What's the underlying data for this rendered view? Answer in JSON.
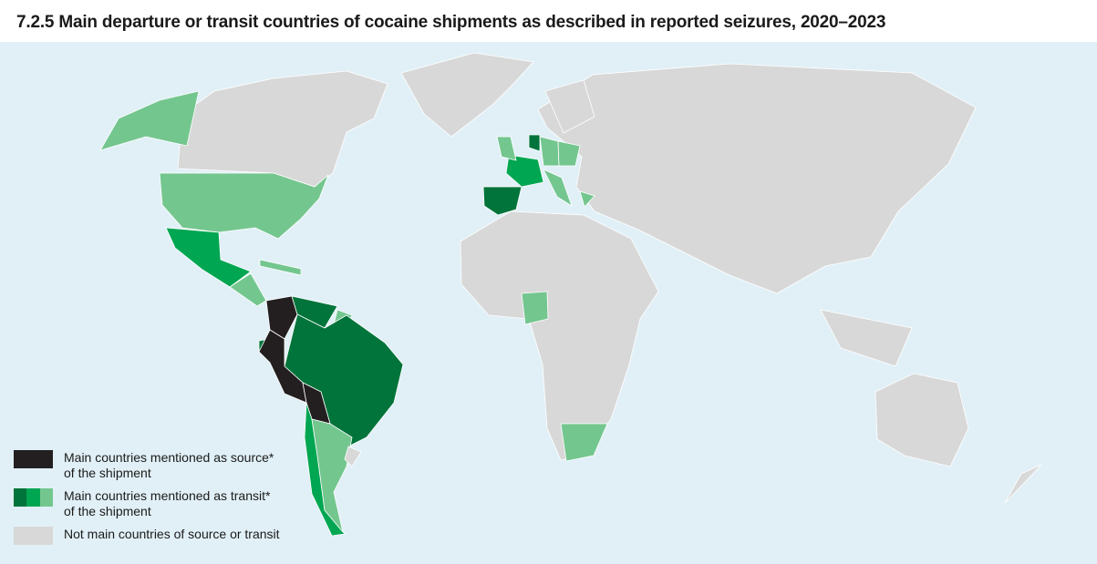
{
  "title": "7.2.5 Main departure or transit countries of cocaine shipments as described in reported seizures, 2020–2023",
  "colors": {
    "ocean": "#e1f0f7",
    "land": "#d8d8d8",
    "border": "#ffffff",
    "source": "#231f20",
    "transit_dark": "#00743a",
    "transit_mid": "#00a651",
    "transit_light": "#74c68f"
  },
  "legend": {
    "items": [
      {
        "label_line1": "Main countries mentioned as source*",
        "label_line2": "of the shipment",
        "swatches": [
          "#231f20"
        ]
      },
      {
        "label_line1": "Main countries mentioned as transit*",
        "label_line2": "of the shipment",
        "swatches": [
          "#00743a",
          "#00a651",
          "#74c68f"
        ]
      },
      {
        "label_line1": "Not main countries of source or transit",
        "label_line2": "",
        "swatches": [
          "#d8d8d8"
        ]
      }
    ]
  }
}
